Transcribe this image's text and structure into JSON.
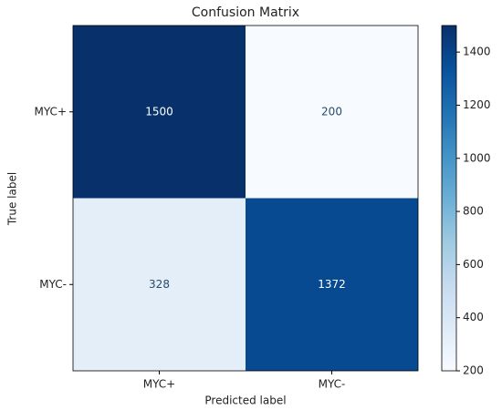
{
  "chart_data": {
    "type": "heatmap",
    "title": "Confusion Matrix",
    "x_label": "Predicted label",
    "y_label": "True label",
    "x_categories": [
      "MYC+",
      "MYC-"
    ],
    "y_categories": [
      "MYC+",
      "MYC-"
    ],
    "values": [
      [
        1500,
        200
      ],
      [
        328,
        1372
      ]
    ],
    "colormap": "Blues",
    "colorbar_lim": [
      200,
      1500
    ],
    "colorbar_ticks": [
      200,
      400,
      600,
      800,
      1000,
      1200,
      1400
    ]
  }
}
